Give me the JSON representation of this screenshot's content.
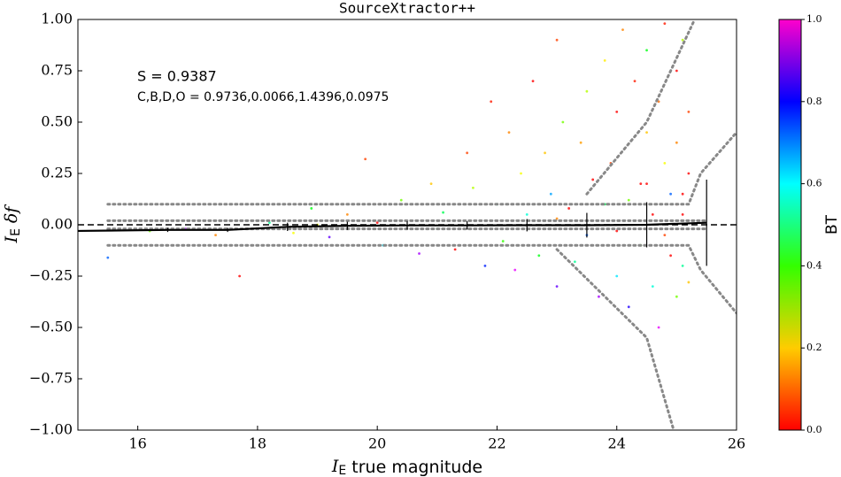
{
  "chart_data": {
    "type": "scatter",
    "title": "SourceXtractor++",
    "xlabel": {
      "symbol": "I",
      "subscript": "E",
      "text": "true magnitude"
    },
    "ylabel": {
      "symbol": "I",
      "subscript": "E",
      "text": "δf"
    },
    "annotations": [
      "S = 0.9387",
      "C,B,D,O = 0.9736,0.0066,1.4396,0.0975"
    ],
    "xlim": [
      15,
      26
    ],
    "xticks": [
      16,
      18,
      20,
      22,
      24,
      26
    ],
    "ylim": [
      -1,
      1
    ],
    "yticks": [
      {
        "value": -1,
        "label": "−1.00"
      },
      {
        "value": -0.75,
        "label": "−0.75"
      },
      {
        "value": -0.5,
        "label": "−0.50"
      },
      {
        "value": -0.25,
        "label": "−0.25"
      },
      {
        "value": 0,
        "label": "0.00"
      },
      {
        "value": 0.25,
        "label": "0.25"
      },
      {
        "value": 0.5,
        "label": "0.50"
      },
      {
        "value": 0.75,
        "label": "0.75"
      },
      {
        "value": 1,
        "label": "1.00"
      }
    ],
    "reference_line": 0,
    "points": {
      "x": [
        15.5,
        16.2,
        16.8,
        17.3,
        17.7,
        18.2,
        18.6,
        18.9,
        19.2,
        19.5,
        19.8,
        20.1,
        20.4,
        20.7,
        20.9,
        21.1,
        21.3,
        21.5,
        21.6,
        21.8,
        21.9,
        22.0,
        22.1,
        22.2,
        22.3,
        22.4,
        22.5,
        22.6,
        22.7,
        22.8,
        22.9,
        23.0,
        23.0,
        23.1,
        23.2,
        23.3,
        23.4,
        23.5,
        23.5,
        23.6,
        23.7,
        23.8,
        23.8,
        23.9,
        24.0,
        24.0,
        24.1,
        24.2,
        24.2,
        24.3,
        24.4,
        24.4,
        24.5,
        24.5,
        24.6,
        24.6,
        24.7,
        24.7,
        24.8,
        24.8,
        24.9,
        24.9,
        25.0,
        25.0,
        25.0,
        25.1,
        25.1,
        25.1,
        25.2,
        25.2,
        25.2,
        19.0,
        20.0,
        21.0,
        22.0,
        23.0,
        24.0,
        25.0,
        24.5,
        25.1,
        24.8
      ],
      "y": [
        -0.16,
        -0.03,
        -0.02,
        -0.05,
        -0.25,
        0.01,
        -0.04,
        0.08,
        -0.06,
        0.05,
        0.32,
        -0.1,
        0.12,
        -0.14,
        0.2,
        0.06,
        -0.12,
        0.35,
        0.18,
        -0.2,
        0.6,
        0.1,
        -0.08,
        0.45,
        -0.22,
        0.25,
        0.05,
        0.7,
        -0.15,
        0.35,
        0.15,
        -0.3,
        0.9,
        0.5,
        0.08,
        -0.18,
        0.4,
        0.65,
        -0.05,
        0.22,
        -0.35,
        0.8,
        0.1,
        0.3,
        -0.25,
        0.55,
        0.95,
        0.12,
        -0.4,
        0.7,
        0.2,
        -0.1,
        0.45,
        0.85,
        -0.3,
        0.05,
        0.6,
        -0.5,
        0.3,
        0.98,
        -0.15,
        0.15,
        0.75,
        -0.35,
        0.4,
        0.05,
        0.9,
        -0.2,
        0.25,
        0.55,
        -0.28,
        0.0,
        0.01,
        -0.02,
        0.02,
        0.03,
        -0.03,
        0.1,
        0.2,
        0.15,
        -0.05
      ],
      "bt": [
        0.7,
        0.3,
        0.9,
        0.1,
        0.0,
        0.5,
        0.2,
        0.4,
        0.85,
        0.1,
        0.05,
        0.6,
        0.3,
        0.9,
        0.15,
        0.45,
        0.0,
        0.05,
        0.25,
        0.75,
        0.02,
        0.5,
        0.35,
        0.1,
        0.95,
        0.2,
        0.55,
        0.0,
        0.4,
        0.15,
        0.65,
        0.85,
        0.05,
        0.3,
        0.0,
        0.5,
        0.12,
        0.25,
        0.7,
        0.0,
        0.9,
        0.18,
        0.45,
        0.05,
        0.6,
        0.0,
        0.1,
        0.3,
        0.8,
        0.02,
        0.0,
        0.35,
        0.15,
        0.4,
        0.55,
        0.0,
        0.08,
        0.95,
        0.2,
        0.02,
        0.0,
        0.7,
        0.0,
        0.3,
        0.1,
        0.0,
        0.25,
        0.5,
        0.0,
        0.05,
        0.15,
        0.2,
        0.0,
        0.4,
        0.0,
        0.1,
        0.0,
        0.0,
        0.0,
        0.0,
        0.05
      ]
    },
    "median_line": {
      "x": [
        15,
        16.5,
        17.5,
        18.5,
        19.5,
        20.5,
        21.5,
        22.5,
        23.5,
        24.5,
        25.5
      ],
      "y": [
        -0.03,
        -0.025,
        -0.025,
        -0.01,
        -0.005,
        -0.003,
        -0.003,
        -0.002,
        -0.002,
        0.0,
        0.01
      ],
      "error": [
        null,
        0.01,
        0.01,
        0.02,
        0.02,
        0.02,
        0.02,
        0.03,
        0.06,
        0.11,
        0.21
      ]
    },
    "dotted_lines": [
      {
        "x": [
          15.5,
          25.2,
          25.4,
          26
        ],
        "y": [
          0.1,
          0.1,
          0.25,
          0.45
        ]
      },
      {
        "x": [
          15.5,
          25.2,
          25.4,
          26
        ],
        "y": [
          -0.1,
          -0.1,
          -0.22,
          -0.43
        ]
      },
      {
        "x": [
          15.5,
          25.5
        ],
        "y": [
          0.02,
          0.02
        ]
      },
      {
        "x": [
          15.5,
          25.5
        ],
        "y": [
          -0.02,
          -0.02
        ]
      },
      {
        "x": [
          23.5,
          24.5,
          25.3
        ],
        "y": [
          0.15,
          0.5,
          1.0
        ]
      },
      {
        "x": [
          23.0,
          24.5,
          24.95
        ],
        "y": [
          -0.12,
          -0.55,
          -1.0
        ]
      }
    ],
    "colorbar": {
      "label": "BT",
      "lim": [
        0,
        1
      ],
      "ticks": [
        {
          "value": 0,
          "label": "0.0"
        },
        {
          "value": 0.2,
          "label": "0.2"
        },
        {
          "value": 0.4,
          "label": "0.4"
        },
        {
          "value": 0.6,
          "label": "0.6"
        },
        {
          "value": 0.8,
          "label": "0.8"
        },
        {
          "value": 1,
          "label": "1.0"
        }
      ]
    }
  }
}
